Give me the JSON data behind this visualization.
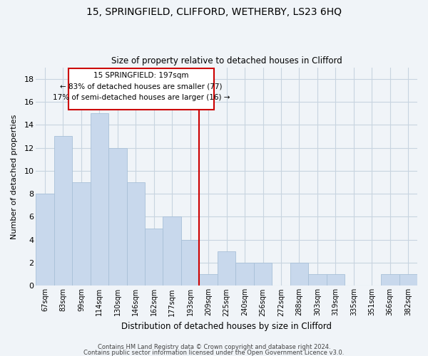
{
  "title1": "15, SPRINGFIELD, CLIFFORD, WETHERBY, LS23 6HQ",
  "title2": "Size of property relative to detached houses in Clifford",
  "xlabel": "Distribution of detached houses by size in Clifford",
  "ylabel": "Number of detached properties",
  "bar_color": "#c8d8ec",
  "bar_edge_color": "#a8c0d8",
  "categories": [
    "67sqm",
    "83sqm",
    "99sqm",
    "114sqm",
    "130sqm",
    "146sqm",
    "162sqm",
    "177sqm",
    "193sqm",
    "209sqm",
    "225sqm",
    "240sqm",
    "256sqm",
    "272sqm",
    "288sqm",
    "303sqm",
    "319sqm",
    "335sqm",
    "351sqm",
    "366sqm",
    "382sqm"
  ],
  "values": [
    8,
    13,
    9,
    15,
    12,
    9,
    5,
    6,
    4,
    1,
    3,
    2,
    2,
    0,
    2,
    1,
    1,
    0,
    0,
    1,
    1
  ],
  "ylim": [
    0,
    19
  ],
  "yticks": [
    0,
    2,
    4,
    6,
    8,
    10,
    12,
    14,
    16,
    18
  ],
  "annotation_line1": "15 SPRINGFIELD: 197sqm",
  "annotation_line2": "← 83% of detached houses are smaller (77)",
  "annotation_line3": "17% of semi-detached houses are larger (16) →",
  "vline_color": "#cc0000",
  "annotation_box_edge": "#cc0000",
  "footer1": "Contains HM Land Registry data © Crown copyright and database right 2024.",
  "footer2": "Contains public sector information licensed under the Open Government Licence v3.0.",
  "background_color": "#f0f4f8",
  "grid_color": "#c8d4e0"
}
